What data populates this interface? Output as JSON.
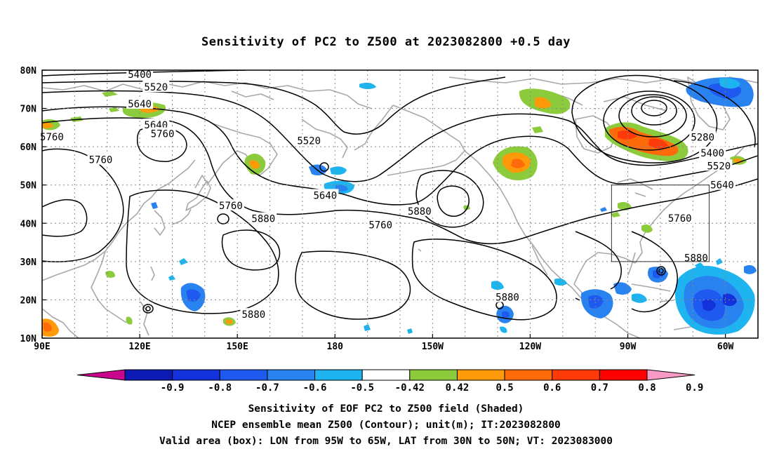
{
  "title": "Sensitivity of PC2 to Z500 at 2023082800 +0.5 day",
  "map": {
    "lon_labels": [
      "90E",
      "120E",
      "150E",
      "180",
      "150W",
      "120W",
      "90W",
      "60W"
    ],
    "lat_labels": [
      "80N",
      "70N",
      "60N",
      "50N",
      "40N",
      "30N",
      "20N",
      "10N"
    ],
    "valid_box": {
      "lon_west": "95W",
      "lon_east": "65W",
      "lat_south": "30N",
      "lat_north": "50N"
    },
    "contour_labels": [
      {
        "text": "5400",
        "lon": 120.0,
        "lat": 78.9
      },
      {
        "text": "5520",
        "lon": 125.0,
        "lat": 75.6
      },
      {
        "text": "5640",
        "lon": 120.0,
        "lat": 71.2
      },
      {
        "text": "5760",
        "lon": 93.0,
        "lat": 62.6
      },
      {
        "text": "5760",
        "lon": 108.0,
        "lat": 56.6
      },
      {
        "text": "5520",
        "lon": 172.0,
        "lat": 61.6
      },
      {
        "text": "5640",
        "lon": 125.0,
        "lat": 65.7
      },
      {
        "text": "5760",
        "lon": 127.0,
        "lat": 63.4
      },
      {
        "text": "5760",
        "lon": 148.0,
        "lat": 44.6
      },
      {
        "text": "5880",
        "lon": 158.0,
        "lat": 41.2
      },
      {
        "text": "5640",
        "lon": 177.0,
        "lat": 47.3
      },
      {
        "text": "5760",
        "lon": 194.0,
        "lat": 39.6
      },
      {
        "text": "5880",
        "lon": 206.0,
        "lat": 43.2
      },
      {
        "text": "5280",
        "lon": 293.0,
        "lat": 62.5
      },
      {
        "text": "5400",
        "lon": 296.0,
        "lat": 58.4
      },
      {
        "text": "5520",
        "lon": 298.0,
        "lat": 55.0
      },
      {
        "text": "5640",
        "lon": 299.0,
        "lat": 50.0
      },
      {
        "text": "5760",
        "lon": 286.0,
        "lat": 41.3
      },
      {
        "text": "5880",
        "lon": 291.0,
        "lat": 31.0
      },
      {
        "text": "5880",
        "lon": 233.0,
        "lat": 20.7
      },
      {
        "text": "5880",
        "lon": 155.0,
        "lat": 16.2
      }
    ]
  },
  "colorbar": {
    "labels": [
      "-0.9",
      "-0.8",
      "-0.7",
      "-0.6",
      "-0.5",
      "-0.42",
      "0.42",
      "0.5",
      "0.6",
      "0.7",
      "0.8",
      "0.9"
    ],
    "colors": [
      "#c8058c",
      "#0c1ab4",
      "#1432dc",
      "#1e5af0",
      "#2882f0",
      "#1eb4f0",
      "#ffffff",
      "#8ccc3c",
      "#ff9a0a",
      "#ff6a0a",
      "#ff3a0a",
      "#ff0000",
      "#f79bc6"
    ]
  },
  "captions": {
    "line1": "Sensitivity of EOF PC2 to Z500 field (Shaded)",
    "line2": "NCEP ensemble mean Z500 (Contour); unit(m); IT:2023082800",
    "line3": "Valid area (box): LON from 95W to 65W, LAT from 30N to 50N; VT: 2023083000"
  }
}
